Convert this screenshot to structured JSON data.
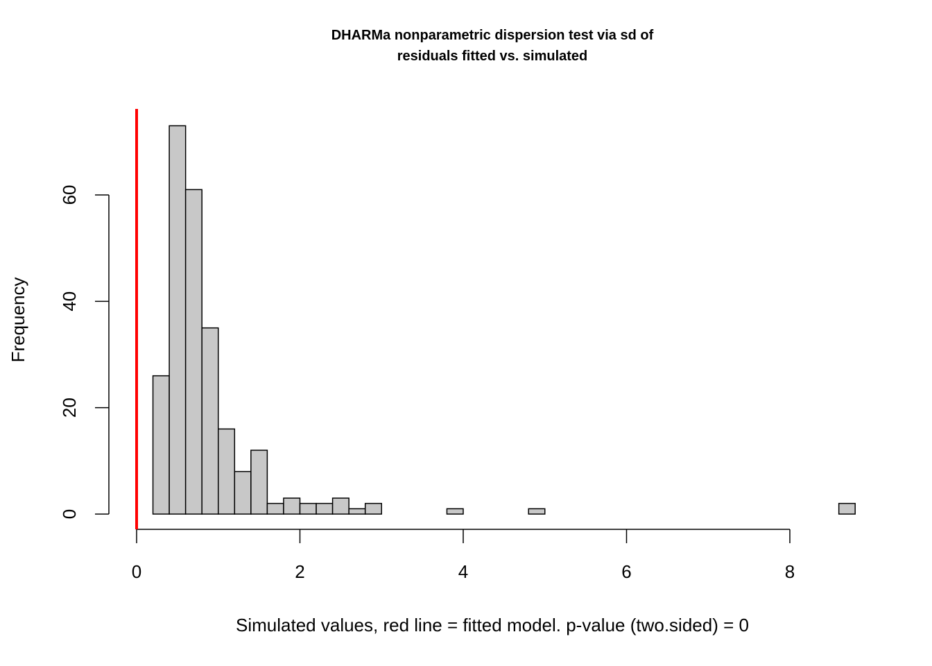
{
  "chart_data": {
    "type": "bar",
    "title_lines": [
      "DHARMa nonparametric dispersion test via sd of",
      "residuals fitted vs. simulated"
    ],
    "xlabel": "Simulated values, red line = fitted model. p-value (two.sided) = 0",
    "ylabel": "Frequency",
    "xlim": [
      0,
      8.8
    ],
    "ylim": [
      0,
      73
    ],
    "x_ticks": [
      0,
      2,
      4,
      6,
      8
    ],
    "x_tick_labels": [
      "0",
      "2",
      "4",
      "6",
      "8"
    ],
    "y_ticks": [
      0,
      20,
      40,
      60
    ],
    "y_tick_labels": [
      "0",
      "20",
      "40",
      "60"
    ],
    "bin_width": 0.2,
    "bin_starts": [
      0.2,
      0.4,
      0.6,
      0.8,
      1.0,
      1.2,
      1.4,
      1.6,
      1.8,
      2.0,
      2.2,
      2.4,
      2.6,
      2.8,
      3.0,
      3.2,
      3.4,
      3.6,
      3.8,
      4.0,
      4.2,
      4.4,
      4.6,
      4.8,
      5.0,
      5.2,
      5.4,
      5.6,
      5.8,
      6.0,
      6.2,
      6.4,
      6.6,
      6.8,
      7.0,
      7.2,
      7.4,
      7.6,
      7.8,
      8.0,
      8.2,
      8.4,
      8.6
    ],
    "counts": [
      26,
      73,
      61,
      35,
      16,
      8,
      12,
      2,
      3,
      2,
      2,
      3,
      1,
      2,
      0,
      0,
      0,
      0,
      1,
      0,
      0,
      0,
      0,
      1,
      0,
      0,
      0,
      0,
      0,
      0,
      0,
      0,
      0,
      0,
      0,
      0,
      0,
      0,
      0,
      0,
      0,
      0,
      2
    ],
    "observed_value": 0,
    "colors": {
      "bar_fill": "#c8c8c8",
      "bar_stroke": "#000000",
      "observed_line": "#ff0000"
    }
  }
}
